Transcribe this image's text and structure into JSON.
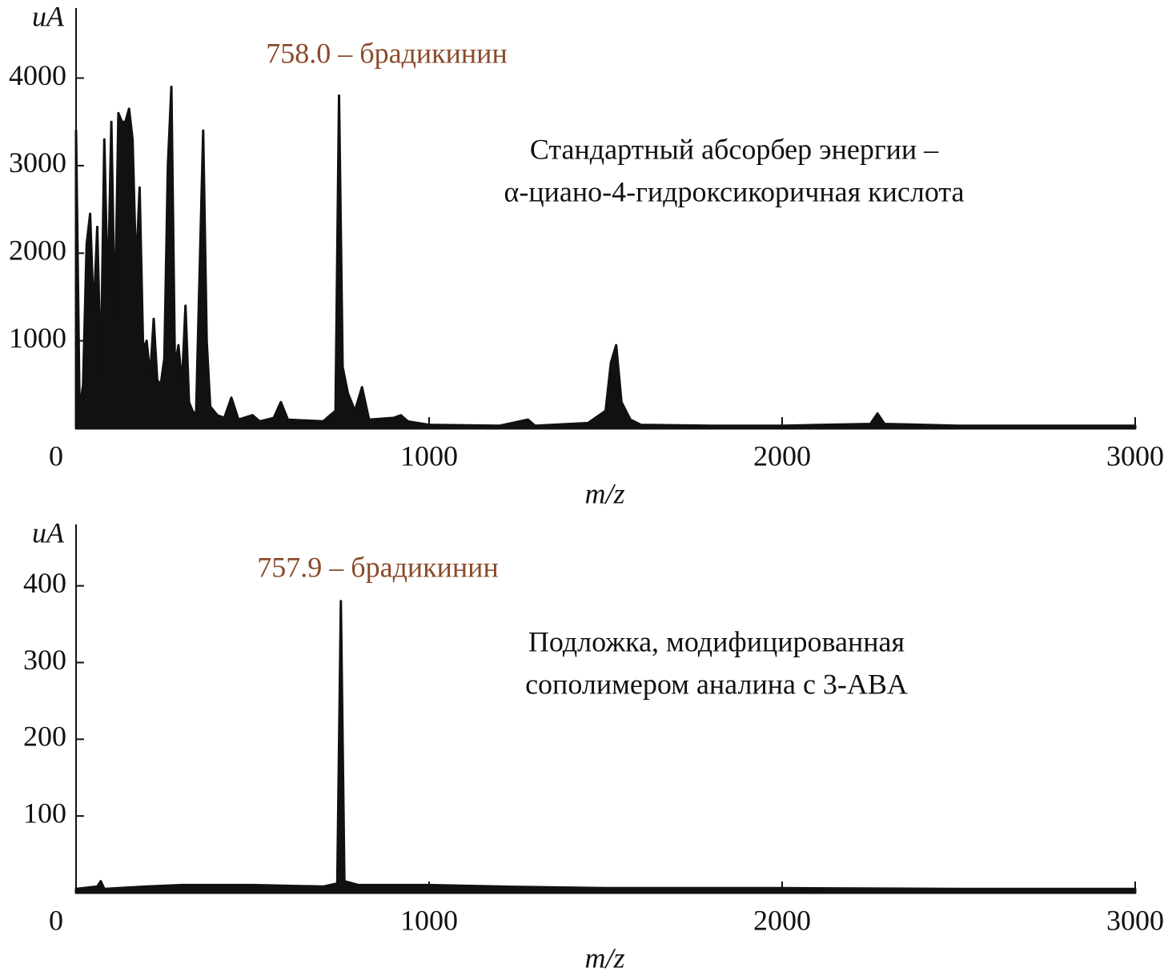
{
  "chart_data": [
    {
      "type": "area",
      "ylabel": "uA",
      "xlabel": "m/z",
      "color": "#111111",
      "peak_label": "758.0 – брадикинин",
      "annotations": [
        "Стандартный абсорбер энергии –",
        "α-циано-4-гидроксикоричная кислота"
      ],
      "xlim": [
        0,
        3000
      ],
      "xticks": [
        0,
        1000,
        2000,
        3000
      ],
      "ylim": [
        0,
        4800
      ],
      "yticks": [
        1000,
        2000,
        3000,
        4000
      ],
      "x": [
        0,
        10,
        20,
        30,
        40,
        50,
        60,
        70,
        80,
        90,
        100,
        110,
        120,
        130,
        140,
        150,
        160,
        170,
        180,
        190,
        200,
        210,
        220,
        230,
        240,
        250,
        260,
        270,
        280,
        290,
        300,
        310,
        320,
        330,
        340,
        360,
        370,
        380,
        400,
        420,
        440,
        460,
        500,
        520,
        560,
        580,
        600,
        700,
        720,
        735,
        745,
        755,
        770,
        790,
        810,
        830,
        900,
        920,
        940,
        1000,
        1200,
        1280,
        1300,
        1450,
        1500,
        1515,
        1530,
        1545,
        1570,
        1600,
        1800,
        2000,
        2250,
        2270,
        2290,
        2500,
        2800,
        3000
      ],
      "values": [
        3400,
        200,
        500,
        2100,
        2450,
        1300,
        2300,
        600,
        3300,
        1500,
        3500,
        1200,
        3600,
        3500,
        3500,
        3650,
        3300,
        1800,
        2750,
        900,
        1000,
        600,
        1250,
        550,
        500,
        800,
        3000,
        3900,
        700,
        950,
        500,
        1400,
        300,
        200,
        150,
        3400,
        1000,
        250,
        150,
        120,
        350,
        100,
        150,
        80,
        120,
        300,
        100,
        80,
        150,
        200,
        3800,
        700,
        400,
        200,
        470,
        100,
        120,
        150,
        80,
        40,
        30,
        100,
        30,
        60,
        200,
        750,
        950,
        300,
        100,
        40,
        30,
        30,
        50,
        170,
        50,
        30,
        30,
        30
      ]
    },
    {
      "type": "area",
      "ylabel": "uA",
      "xlabel": "m/z",
      "color": "#111111",
      "peak_label": "757.9 – брадикинин",
      "annotations": [
        "Подложка, модифицированная",
        "сополимером аналина с 3-ABA"
      ],
      "xlim": [
        0,
        3000
      ],
      "xticks": [
        0,
        1000,
        2000,
        3000
      ],
      "ylim": [
        0,
        480
      ],
      "yticks": [
        100,
        200,
        300,
        400
      ],
      "x": [
        0,
        60,
        70,
        80,
        200,
        300,
        500,
        700,
        740,
        750,
        760,
        800,
        1000,
        1200,
        1500,
        2000,
        2500,
        3000
      ],
      "values": [
        5,
        8,
        15,
        5,
        8,
        10,
        10,
        8,
        12,
        380,
        15,
        10,
        10,
        8,
        6,
        6,
        5,
        5
      ]
    }
  ]
}
